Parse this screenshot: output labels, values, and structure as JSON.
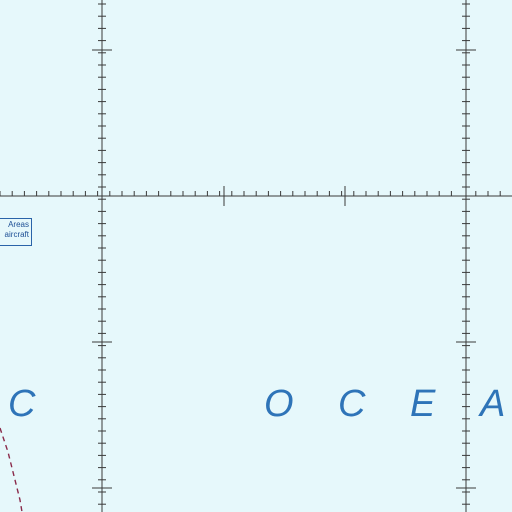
{
  "map": {
    "colors": {
      "sea": "#e6f8fb",
      "grid": "#3a3a3a",
      "label": "#2e74b8",
      "boundary": "#8a2a4a",
      "note_border": "#2a63a8"
    },
    "note": {
      "lines": [
        "Areas",
        "aircraft"
      ]
    },
    "ocean_label_letters": [
      "C",
      "O",
      "C",
      "E",
      "A"
    ],
    "features": {
      "boundary_style": "dashed",
      "graticule": true
    }
  }
}
